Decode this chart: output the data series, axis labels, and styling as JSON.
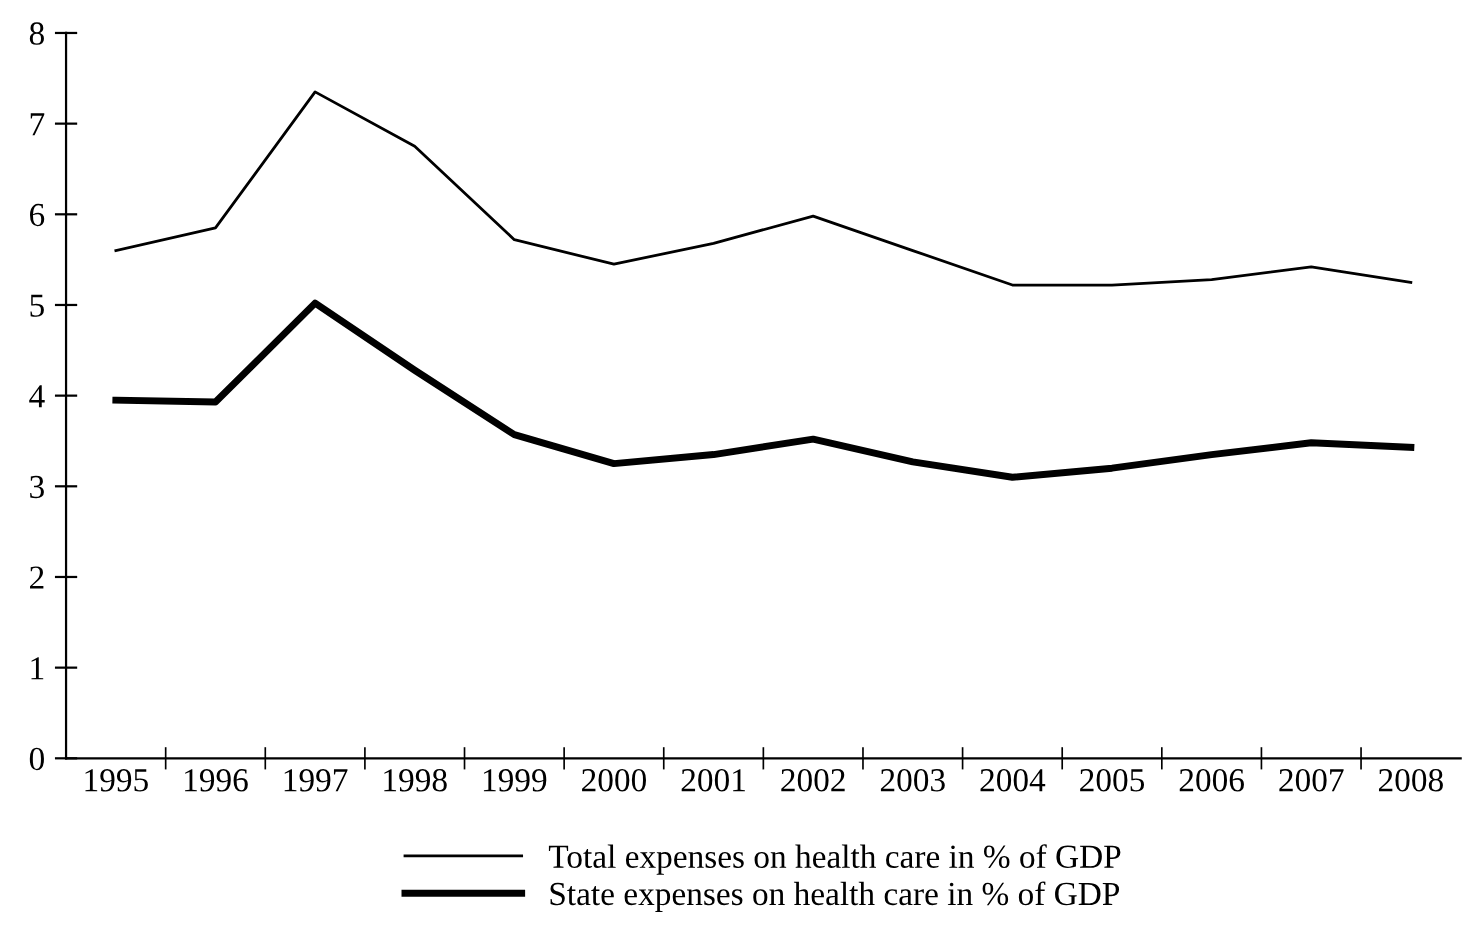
{
  "chart_data": {
    "type": "line",
    "categories": [
      "1995",
      "1996",
      "1997",
      "1998",
      "1999",
      "2000",
      "2001",
      "2002",
      "2003",
      "2004",
      "2005",
      "2006",
      "2007",
      "2008"
    ],
    "series": [
      {
        "name": "Total expenses on health care in % of GDP",
        "color": "#000000",
        "values": [
          5.6,
          5.85,
          7.35,
          6.75,
          5.72,
          5.45,
          5.68,
          5.98,
          5.6,
          5.22,
          5.22,
          5.28,
          5.42,
          5.25
        ]
      },
      {
        "name": "State expenses on health care in % of GDP",
        "color": "#000000",
        "values": [
          3.95,
          3.93,
          5.02,
          4.28,
          3.57,
          3.25,
          3.35,
          3.52,
          3.27,
          3.1,
          3.2,
          3.35,
          3.48,
          3.43
        ]
      }
    ],
    "ylim": [
      0,
      8
    ],
    "yticks": [
      0,
      1,
      2,
      3,
      4,
      5,
      6,
      7,
      8
    ],
    "grid": false,
    "legend": "bottom",
    "marker": "none",
    "line_style": "solid"
  }
}
